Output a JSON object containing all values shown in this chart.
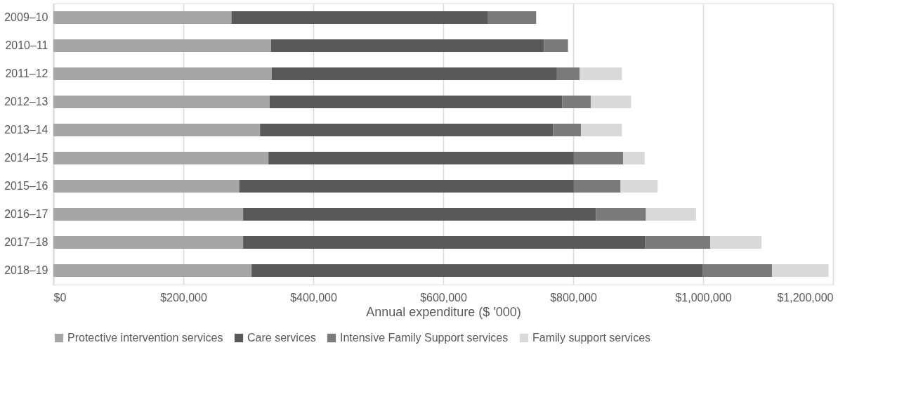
{
  "chart_data": {
    "type": "bar",
    "orientation": "horizontal",
    "stacked": true,
    "categories": [
      "2009–10",
      "2010–11",
      "2011–12",
      "2012–13",
      "2013–14",
      "2014–15",
      "2015–16",
      "2016–17",
      "2017–18",
      "2018–19"
    ],
    "series": [
      {
        "name": "Protective intervention services",
        "color": "#a6a6a6",
        "values": [
          274000,
          335000,
          336000,
          333000,
          318000,
          331000,
          286000,
          292000,
          292000,
          305000
        ]
      },
      {
        "name": "Care services",
        "color": "#595959",
        "values": [
          395000,
          420000,
          439000,
          450000,
          451000,
          470000,
          515000,
          543000,
          619000,
          694000
        ]
      },
      {
        "name": "Intensive Family Support services",
        "color": "#7a7a7a",
        "values": [
          74000,
          37000,
          35000,
          44000,
          43000,
          76000,
          72000,
          77000,
          100000,
          107000
        ]
      },
      {
        "name": "Family support services",
        "color": "#d9d9d9",
        "values": [
          null,
          null,
          65000,
          62000,
          63000,
          33000,
          57000,
          77000,
          79000,
          87000
        ]
      }
    ],
    "xlabel": "Annual expenditure ($ '000)",
    "xlim": [
      0,
      1200000
    ],
    "xticks": [
      {
        "value": 0,
        "label": "$0"
      },
      {
        "value": 200000,
        "label": "$200,000"
      },
      {
        "value": 400000,
        "label": "$400,000"
      },
      {
        "value": 600000,
        "label": "$600,000"
      },
      {
        "value": 800000,
        "label": "$800,000"
      },
      {
        "value": 1000000,
        "label": "$1,000,000"
      },
      {
        "value": 1200000,
        "label": "$1,200,000"
      }
    ],
    "grid": "x",
    "legend": "bottom"
  }
}
